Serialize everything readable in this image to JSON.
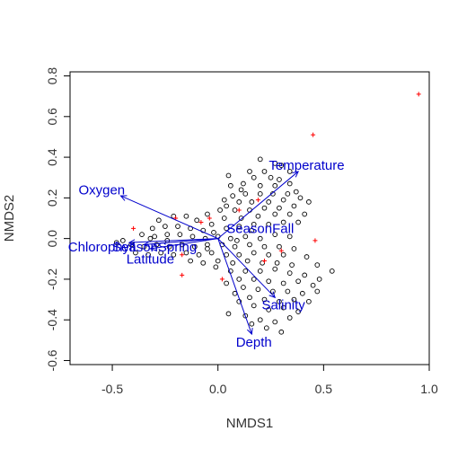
{
  "chart_data": {
    "type": "scatter",
    "title": "",
    "xlabel": "NMDS1",
    "ylabel": "NMDS2",
    "xlim": [
      -0.7,
      1.0
    ],
    "ylim": [
      -0.62,
      0.82
    ],
    "xticks": [
      -0.5,
      0.0,
      0.5,
      1.0
    ],
    "xtick_labels": [
      "-0.5",
      "0.0",
      "0.5",
      "1.0"
    ],
    "yticks": [
      -0.6,
      -0.4,
      -0.2,
      0.0,
      0.2,
      0.4,
      0.6,
      0.8
    ],
    "ytick_labels": [
      "-0.6",
      "-0.4",
      "-0.2",
      "0.0",
      "0.2",
      "0.4",
      "0.6",
      "0.8"
    ],
    "grid": false,
    "colors": {
      "sites": "#000000",
      "species": "#ff0000",
      "vectors": "#0000cc"
    },
    "vectors": [
      {
        "label": "Temperature",
        "x": 0.38,
        "y": 0.33,
        "label_x": 0.42,
        "label_y": 0.355
      },
      {
        "label": "Oxygen",
        "x": -0.46,
        "y": 0.21,
        "label_x": -0.55,
        "label_y": 0.235
      },
      {
        "label": "SeasonFall",
        "x": 0.0,
        "y": 0.0,
        "label_x": 0.2,
        "label_y": 0.045
      },
      {
        "label": "Chlorophyll",
        "x": -0.42,
        "y": -0.02,
        "label_x": -0.55,
        "label_y": -0.045
      },
      {
        "label": "SeasonSpring",
        "x": -0.35,
        "y": -0.03,
        "label_x": -0.3,
        "label_y": -0.045
      },
      {
        "label": "Latitude",
        "x": -0.32,
        "y": -0.05,
        "label_x": -0.32,
        "label_y": -0.105
      },
      {
        "label": "Salinity",
        "x": 0.27,
        "y": -0.29,
        "label_x": 0.31,
        "label_y": -0.33
      },
      {
        "label": "Depth",
        "x": 0.16,
        "y": -0.47,
        "label_x": 0.17,
        "label_y": -0.515
      }
    ],
    "species": [
      [
        0.95,
        0.71
      ],
      [
        0.45,
        0.51
      ],
      [
        -0.4,
        0.05
      ],
      [
        -0.2,
        0.1
      ],
      [
        -0.08,
        0.08
      ],
      [
        0.1,
        0.14
      ],
      [
        -0.17,
        -0.08
      ],
      [
        -0.17,
        -0.18
      ],
      [
        0.02,
        -0.2
      ],
      [
        0.22,
        -0.11
      ],
      [
        0.3,
        -0.06
      ],
      [
        0.46,
        -0.01
      ],
      [
        0.19,
        0.19
      ],
      [
        -0.04,
        0.1
      ]
    ],
    "sites": [
      [
        0.2,
        0.39
      ],
      [
        0.27,
        0.37
      ],
      [
        0.15,
        0.33
      ],
      [
        0.22,
        0.33
      ],
      [
        0.3,
        0.36
      ],
      [
        0.34,
        0.33
      ],
      [
        0.25,
        0.3
      ],
      [
        0.17,
        0.3
      ],
      [
        0.12,
        0.27
      ],
      [
        0.06,
        0.26
      ],
      [
        0.2,
        0.26
      ],
      [
        0.27,
        0.26
      ],
      [
        0.34,
        0.27
      ],
      [
        0.37,
        0.23
      ],
      [
        0.33,
        0.22
      ],
      [
        0.26,
        0.22
      ],
      [
        0.2,
        0.22
      ],
      [
        0.13,
        0.22
      ],
      [
        0.07,
        0.21
      ],
      [
        0.03,
        0.19
      ],
      [
        0.1,
        0.18
      ],
      [
        0.16,
        0.18
      ],
      [
        0.24,
        0.18
      ],
      [
        0.31,
        0.19
      ],
      [
        0.39,
        0.2
      ],
      [
        0.43,
        0.18
      ],
      [
        0.36,
        0.16
      ],
      [
        0.29,
        0.15
      ],
      [
        0.22,
        0.15
      ],
      [
        0.15,
        0.14
      ],
      [
        0.08,
        0.14
      ],
      [
        0.01,
        0.14
      ],
      [
        -0.05,
        0.12
      ],
      [
        0.03,
        0.1
      ],
      [
        0.11,
        0.1
      ],
      [
        0.19,
        0.11
      ],
      [
        0.27,
        0.12
      ],
      [
        0.34,
        0.12
      ],
      [
        0.41,
        0.12
      ],
      [
        0.38,
        0.08
      ],
      [
        0.31,
        0.08
      ],
      [
        0.24,
        0.07
      ],
      [
        0.17,
        0.07
      ],
      [
        0.1,
        0.06
      ],
      [
        0.04,
        0.05
      ],
      [
        -0.03,
        0.07
      ],
      [
        -0.1,
        0.09
      ],
      [
        -0.15,
        0.11
      ],
      [
        -0.21,
        0.11
      ],
      [
        -0.28,
        0.09
      ],
      [
        -0.25,
        0.06
      ],
      [
        -0.19,
        0.06
      ],
      [
        -0.13,
        0.05
      ],
      [
        -0.07,
        0.04
      ],
      [
        -0.31,
        0.05
      ],
      [
        -0.36,
        0.02
      ],
      [
        -0.3,
        0.01
      ],
      [
        -0.24,
        0.02
      ],
      [
        -0.18,
        0.02
      ],
      [
        -0.12,
        0.01
      ],
      [
        -0.06,
        0.0
      ],
      [
        0.0,
        0.01
      ],
      [
        0.06,
        0.0
      ],
      [
        0.13,
        0.01
      ],
      [
        0.2,
        0.0
      ],
      [
        0.27,
        0.02
      ],
      [
        0.34,
        0.01
      ],
      [
        -0.45,
        -0.01
      ],
      [
        -0.48,
        -0.02
      ],
      [
        -0.41,
        -0.03
      ],
      [
        -0.35,
        -0.04
      ],
      [
        -0.29,
        -0.03
      ],
      [
        -0.23,
        -0.04
      ],
      [
        -0.17,
        -0.03
      ],
      [
        -0.11,
        -0.04
      ],
      [
        -0.05,
        -0.03
      ],
      [
        0.02,
        -0.03
      ],
      [
        0.08,
        -0.04
      ],
      [
        0.15,
        -0.03
      ],
      [
        0.22,
        -0.04
      ],
      [
        0.29,
        -0.04
      ],
      [
        0.36,
        -0.05
      ],
      [
        -0.39,
        -0.07
      ],
      [
        -0.33,
        -0.08
      ],
      [
        -0.27,
        -0.07
      ],
      [
        -0.21,
        -0.08
      ],
      [
        -0.15,
        -0.07
      ],
      [
        -0.09,
        -0.08
      ],
      [
        -0.03,
        -0.07
      ],
      [
        0.04,
        -0.08
      ],
      [
        0.1,
        -0.08
      ],
      [
        0.17,
        -0.07
      ],
      [
        0.24,
        -0.08
      ],
      [
        0.31,
        -0.08
      ],
      [
        0.42,
        -0.09
      ],
      [
        -0.13,
        -0.11
      ],
      [
        -0.07,
        -0.12
      ],
      [
        0.0,
        -0.11
      ],
      [
        0.07,
        -0.12
      ],
      [
        0.14,
        -0.11
      ],
      [
        0.21,
        -0.12
      ],
      [
        0.28,
        -0.12
      ],
      [
        0.35,
        -0.13
      ],
      [
        0.47,
        -0.13
      ],
      [
        0.54,
        -0.16
      ],
      [
        0.06,
        -0.16
      ],
      [
        0.13,
        -0.16
      ],
      [
        0.2,
        -0.16
      ],
      [
        0.27,
        -0.15
      ],
      [
        0.34,
        -0.17
      ],
      [
        0.41,
        -0.18
      ],
      [
        0.48,
        -0.2
      ],
      [
        0.1,
        -0.2
      ],
      [
        0.17,
        -0.2
      ],
      [
        0.24,
        -0.21
      ],
      [
        0.31,
        -0.22
      ],
      [
        0.38,
        -0.21
      ],
      [
        0.45,
        -0.23
      ],
      [
        0.12,
        -0.24
      ],
      [
        0.19,
        -0.25
      ],
      [
        0.26,
        -0.26
      ],
      [
        0.33,
        -0.26
      ],
      [
        0.4,
        -0.27
      ],
      [
        0.47,
        -0.26
      ],
      [
        0.15,
        -0.29
      ],
      [
        0.22,
        -0.3
      ],
      [
        0.29,
        -0.31
      ],
      [
        0.36,
        -0.3
      ],
      [
        0.43,
        -0.31
      ],
      [
        0.1,
        -0.31
      ],
      [
        0.17,
        -0.33
      ],
      [
        0.24,
        -0.35
      ],
      [
        0.31,
        -0.34
      ],
      [
        0.38,
        -0.36
      ],
      [
        0.05,
        -0.37
      ],
      [
        0.13,
        -0.38
      ],
      [
        0.2,
        -0.4
      ],
      [
        0.27,
        -0.41
      ],
      [
        0.34,
        -0.39
      ],
      [
        0.3,
        -0.46
      ],
      [
        0.23,
        -0.44
      ],
      [
        0.16,
        -0.42
      ],
      [
        0.08,
        -0.27
      ],
      [
        -0.05,
        -0.05
      ],
      [
        -0.01,
        -0.14
      ],
      [
        0.04,
        -0.22
      ],
      [
        0.11,
        0.24
      ],
      [
        0.04,
        0.16
      ],
      [
        -0.02,
        0.03
      ],
      [
        0.09,
        -0.01
      ],
      [
        0.16,
        0.04
      ],
      [
        0.05,
        0.31
      ],
      [
        0.29,
        0.29
      ],
      [
        -0.24,
        -0.01
      ],
      [
        -0.32,
        0.0
      ]
    ]
  }
}
